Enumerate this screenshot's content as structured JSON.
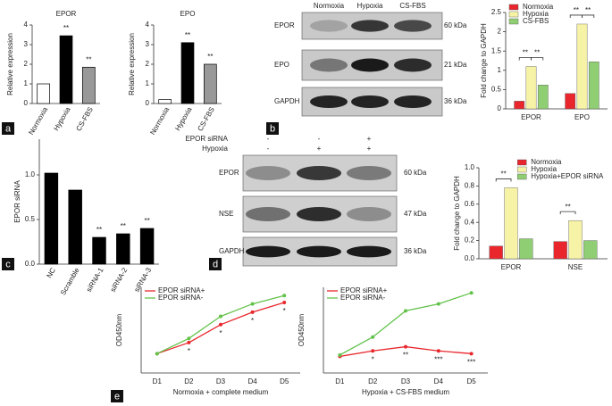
{
  "panel_labels": [
    "a",
    "b",
    "c",
    "d",
    "e"
  ],
  "blot_b": {
    "columns": [
      "Normoxia",
      "Hypoxia",
      "CS-FBS"
    ],
    "rows": [
      {
        "label": "EPOR",
        "size": "60 kDa"
      },
      {
        "label": "EPO",
        "size": "21 kDa"
      },
      {
        "label": "GAPDH",
        "size": "36 kDa"
      }
    ]
  },
  "blot_d": {
    "conditions": [
      {
        "label": "EPOR siRNA",
        "marks": [
          "-",
          "-",
          "+"
        ]
      },
      {
        "label": "Hypoxia",
        "marks": [
          "-",
          "+",
          "+"
        ]
      }
    ],
    "rows": [
      {
        "label": "EPOR",
        "size": "60 kDa"
      },
      {
        "label": "NSE",
        "size": "47 kDa"
      },
      {
        "label": "GAPDH",
        "size": "36 kDa"
      }
    ]
  },
  "chart_data": [
    {
      "type": "bar",
      "title": "EPOR",
      "y_label": "Relative expression",
      "categories": [
        "Normoxia",
        "Hypoxia",
        "CS-FBS"
      ],
      "values": [
        1,
        3.45,
        1.85
      ],
      "colors": [
        "#ffffff",
        "#000000",
        "#999999"
      ],
      "annotations": [
        null,
        "**",
        "**"
      ],
      "ylim": [
        0,
        4
      ],
      "yticks": [
        0,
        1,
        2,
        3,
        4
      ]
    },
    {
      "type": "bar",
      "title": "EPO",
      "y_label": "Relative expression",
      "categories": [
        "Normoxia",
        "Hypoxia",
        "CS-FBS"
      ],
      "values": [
        0.2,
        3.1,
        2.0
      ],
      "colors": [
        "#ffffff",
        "#000000",
        "#999999"
      ],
      "annotations": [
        null,
        "**",
        "**"
      ],
      "ylim": [
        0,
        4
      ],
      "yticks": [
        0,
        1,
        2,
        3,
        4
      ]
    },
    {
      "type": "bar",
      "y_label": "Fold change to GAPDH",
      "categories": [
        "EPOR",
        "EPO"
      ],
      "series": [
        {
          "name": "Normoxia",
          "color": "#e8262c",
          "values": [
            0.2,
            0.4
          ]
        },
        {
          "name": "Hypoxia",
          "color": "#f7f3a6",
          "values": [
            1.1,
            2.2
          ],
          "annotations": [
            "**",
            "**"
          ]
        },
        {
          "name": "CS-FBS",
          "color": "#8fce72",
          "values": [
            0.62,
            1.22
          ],
          "annotations": [
            "**",
            "**"
          ]
        }
      ],
      "ylim": [
        0,
        2.5
      ],
      "yticks": [
        0,
        0.5,
        1,
        1.5,
        2,
        2.5
      ],
      "legend": "upper left"
    },
    {
      "type": "bar",
      "y_label": "EPOR siRNA",
      "categories": [
        "NC",
        "Scramble",
        "siRNA-1",
        "siRNA-2",
        "siRNA-3"
      ],
      "values": [
        1.02,
        0.83,
        0.3,
        0.34,
        0.4
      ],
      "color": "#000000",
      "annotations": [
        null,
        null,
        "**",
        "**",
        "**"
      ],
      "ylim": [
        0,
        1.4
      ],
      "yticks": [
        {
          "value": 0,
          "label": "0.0"
        },
        {
          "value": 0.5,
          "label": "0.5"
        },
        {
          "value": 1,
          "label": "1.0"
        }
      ]
    },
    {
      "type": "bar",
      "y_label": "Fold change to GAPDH",
      "categories": [
        "EPOR",
        "NSE"
      ],
      "series": [
        {
          "name": "Normoxia",
          "color": "#e8262c",
          "values": [
            0.14,
            0.19
          ]
        },
        {
          "name": "Hypoxia",
          "color": "#f7f3a6",
          "values": [
            0.78,
            0.42
          ],
          "annotations": [
            "**",
            "**"
          ]
        },
        {
          "name": "Hypoxia+EPOR siRNA",
          "color": "#8fce72",
          "values": [
            0.22,
            0.2
          ]
        }
      ],
      "ylim": [
        0,
        1
      ],
      "yticks": [
        {
          "value": 0,
          "label": "0.0"
        },
        0.2,
        0.4,
        0.6,
        0.8,
        {
          "value": 1,
          "label": "1.0"
        }
      ],
      "legend": "upper right"
    },
    {
      "type": "line",
      "y_label": "OD450nm",
      "x_label": "Normoxia + complete medium",
      "categories": [
        "D1",
        "D2",
        "D3",
        "D4",
        "D5"
      ],
      "series": [
        {
          "name": "EPOR siRNA+",
          "color": "#e8262c",
          "values": [
            0.14,
            0.22,
            0.35,
            0.44,
            0.51
          ],
          "annotations": [
            null,
            "*",
            "*",
            "*",
            "*"
          ]
        },
        {
          "name": "EPOR siRNA-",
          "color": "#62c24a",
          "values": [
            0.14,
            0.25,
            0.41,
            0.5,
            0.56
          ]
        }
      ],
      "ylim": [
        0,
        0.62
      ],
      "legend": "upper left"
    },
    {
      "type": "line",
      "y_label": "OD450nm",
      "x_label": "Hypoxia + CS-FBS medium",
      "categories": [
        "D1",
        "D2",
        "D3",
        "D4",
        "D5"
      ],
      "series": [
        {
          "name": "EPOR siRNA+",
          "color": "#e8262c",
          "values": [
            0.12,
            0.16,
            0.19,
            0.16,
            0.14
          ],
          "annotations": [
            null,
            "*",
            "**",
            "***",
            "***"
          ]
        },
        {
          "name": "EPOR siRNA-",
          "color": "#62c24a",
          "values": [
            0.13,
            0.26,
            0.45,
            0.5,
            0.58
          ]
        }
      ],
      "ylim": [
        0,
        0.62
      ],
      "legend": "upper left"
    }
  ]
}
